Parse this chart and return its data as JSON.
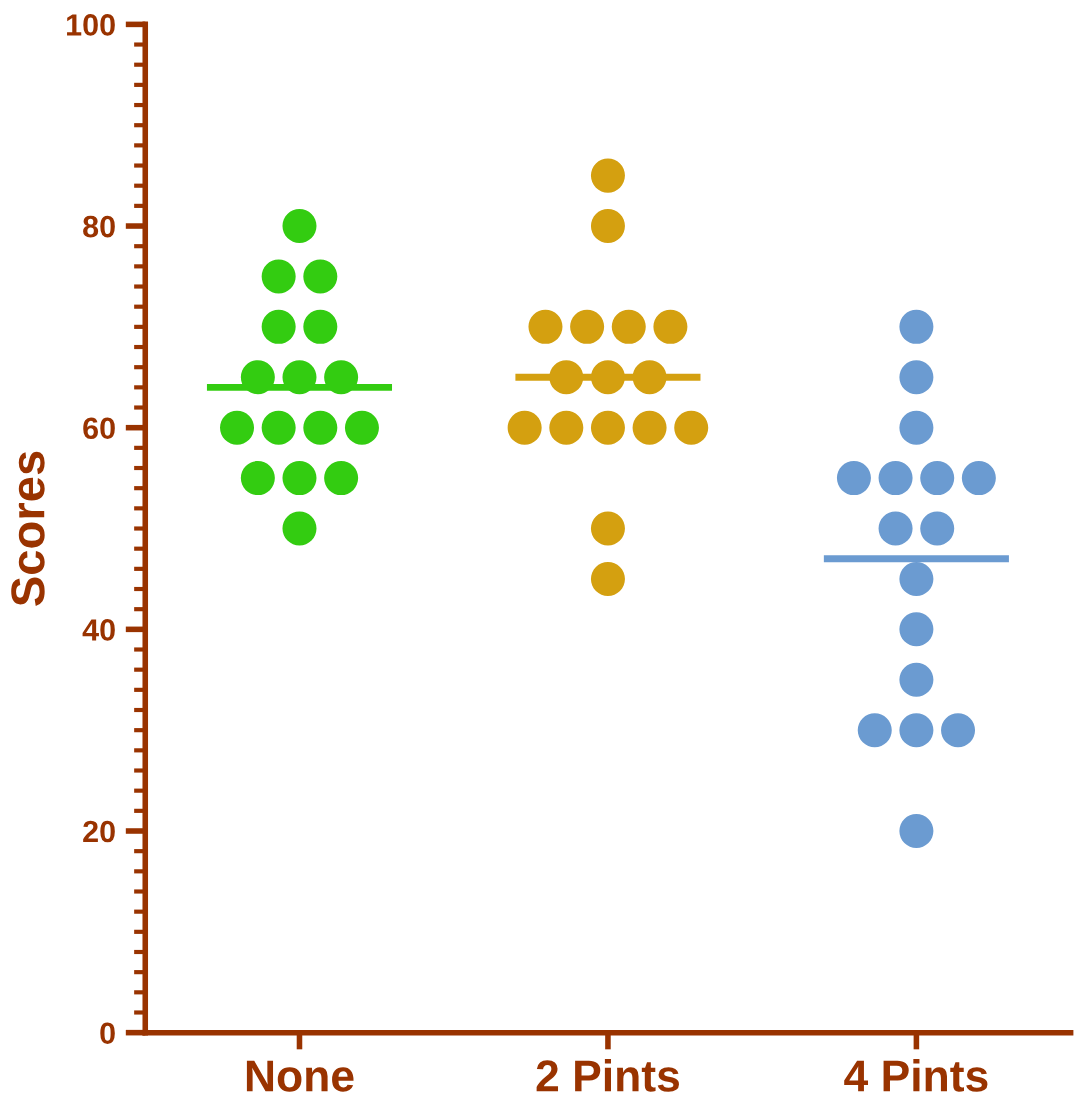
{
  "chart_data": {
    "type": "scatter",
    "ylabel": "Scores",
    "categories": [
      "None",
      "2 Pints",
      "4 Pints"
    ],
    "ylim": [
      0,
      100
    ],
    "yticks": [
      0,
      20,
      40,
      60,
      80,
      100
    ],
    "grid": false,
    "marker": "circle",
    "series": [
      {
        "color": "#33cc11",
        "x": [
          "None",
          "None",
          "None",
          "None",
          "None",
          "None",
          "None",
          "None",
          "None",
          "None",
          "None",
          "None",
          "None",
          "None",
          "None",
          "None"
        ],
        "values": [
          80,
          75,
          75,
          70,
          70,
          65,
          65,
          65,
          60,
          60,
          60,
          60,
          55,
          55,
          55,
          50
        ]
      },
      {
        "color": "#d4a010",
        "x": [
          "2 Pints",
          "2 Pints",
          "2 Pints",
          "2 Pints",
          "2 Pints",
          "2 Pints",
          "2 Pints",
          "2 Pints",
          "2 Pints",
          "2 Pints",
          "2 Pints",
          "2 Pints",
          "2 Pints",
          "2 Pints",
          "2 Pints",
          "2 Pints"
        ],
        "values": [
          85,
          80,
          70,
          70,
          70,
          70,
          65,
          65,
          65,
          60,
          60,
          60,
          60,
          60,
          50,
          45
        ]
      },
      {
        "color": "#6b9bd1",
        "x": [
          "4 Pints",
          "4 Pints",
          "4 Pints",
          "4 Pints",
          "4 Pints",
          "4 Pints",
          "4 Pints",
          "4 Pints",
          "4 Pints",
          "4 Pints",
          "4 Pints",
          "4 Pints",
          "4 Pints",
          "4 Pints",
          "4 Pints",
          "4 Pints"
        ],
        "values": [
          70,
          65,
          60,
          55,
          55,
          55,
          55,
          50,
          50,
          45,
          40,
          35,
          30,
          30,
          30,
          20
        ]
      }
    ],
    "ref_lines": [
      {
        "axis": "y",
        "value": 64,
        "color": "#33cc11"
      },
      {
        "axis": "y",
        "value": 65,
        "color": "#d4a010"
      },
      {
        "axis": "y",
        "value": 47,
        "color": "#6b9bd1"
      }
    ]
  }
}
